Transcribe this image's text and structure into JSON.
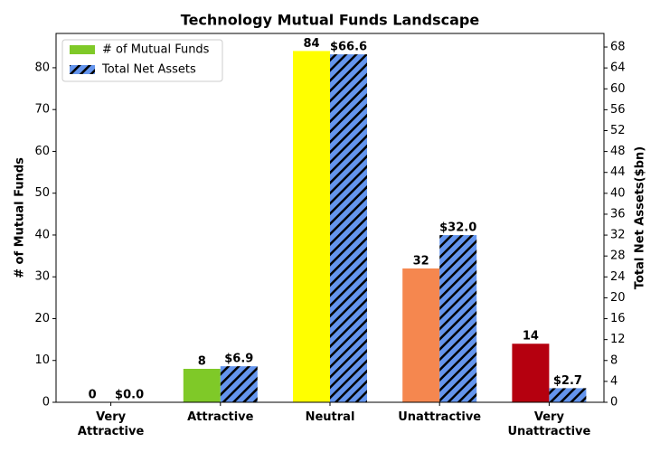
{
  "chart_data": {
    "type": "bar",
    "title": "Technology Mutual Funds Landscape",
    "categories": [
      "Very\nAttractive",
      "Attractive",
      "Neutral",
      "Unattractive",
      "Very\nUnattractive"
    ],
    "ylabel": "# of Mutual Funds",
    "y2label": "Total Net Assets($bn)",
    "ylim": [
      0,
      88.2
    ],
    "yticks": [
      0,
      10,
      20,
      30,
      40,
      50,
      60,
      70,
      80
    ],
    "y2lim": [
      0,
      70.6
    ],
    "y2ticks": [
      0,
      4,
      8,
      12,
      16,
      20,
      24,
      28,
      32,
      36,
      40,
      44,
      48,
      52,
      56,
      60,
      64,
      68
    ],
    "legend": "upper left",
    "series": [
      {
        "name": "# of Mutual Funds",
        "color": "#7fc928",
        "colors": [
          "#2e8b57",
          "#7fc928",
          "#ffff00",
          "#f5874f",
          "#b5000f"
        ],
        "values": [
          0,
          8,
          84,
          32,
          14
        ]
      },
      {
        "name": "Total Net Assets",
        "color": "#6495ed",
        "hatch": true,
        "axis": "y2",
        "values": [
          0.0,
          6.9,
          66.6,
          32.0,
          2.7
        ],
        "value_labels": [
          "$0.0",
          "$6.9",
          "$66.6",
          "$32.0",
          "$2.7"
        ]
      }
    ]
  }
}
